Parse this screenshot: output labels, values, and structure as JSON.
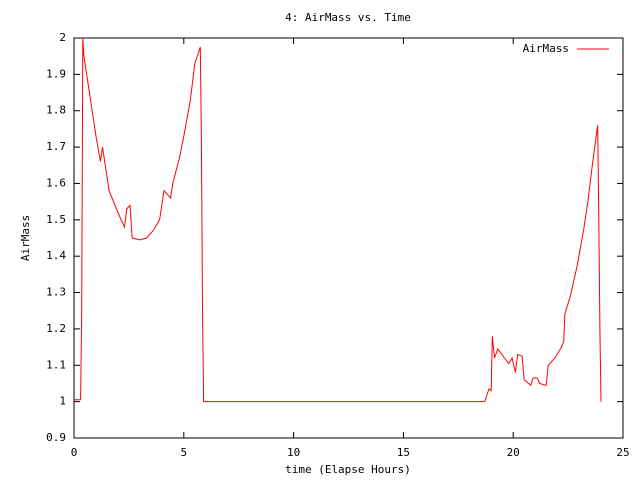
{
  "chart_data": {
    "type": "line",
    "title": "4: AirMass vs. Time",
    "x_label": "time (Elapse Hours)",
    "y_label": "AirMass",
    "xlim": [
      0,
      25
    ],
    "xticks": [
      0,
      5,
      10,
      15,
      20,
      25
    ],
    "ylim": [
      0.9,
      2
    ],
    "yticks": [
      0.9,
      1,
      1.1,
      1.2,
      1.3,
      1.4,
      1.5,
      1.6,
      1.7,
      1.8,
      1.9,
      2
    ],
    "legend": "top-right",
    "grid": false,
    "series": [
      {
        "name": "AirMass",
        "color": "#ff0000",
        "x": [
          0,
          0.3,
          0.35,
          0.4,
          0.45,
          0.7,
          1.0,
          1.2,
          1.3,
          1.4,
          1.6,
          2.0,
          2.3,
          2.4,
          2.55,
          2.65,
          3.0,
          3.3,
          3.6,
          3.9,
          4.1,
          4.4,
          4.5,
          4.8,
          5.0,
          5.3,
          5.5,
          5.75,
          5.8,
          5.85,
          5.9,
          18.7,
          18.9,
          19.0,
          19.05,
          19.15,
          19.3,
          19.6,
          19.8,
          19.95,
          20.1,
          20.2,
          20.4,
          20.5,
          20.8,
          20.9,
          21.1,
          21.2,
          21.5,
          21.6,
          21.9,
          22.2,
          22.3,
          22.35,
          22.6,
          22.9,
          23.2,
          23.4,
          23.6,
          23.85,
          23.9,
          23.95,
          24.0
        ],
        "values": [
          1.005,
          1.005,
          1.25,
          2.0,
          1.95,
          1.85,
          1.73,
          1.66,
          1.7,
          1.66,
          1.58,
          1.52,
          1.48,
          1.53,
          1.54,
          1.45,
          1.445,
          1.45,
          1.47,
          1.5,
          1.58,
          1.56,
          1.6,
          1.67,
          1.73,
          1.83,
          1.93,
          1.975,
          1.72,
          1.25,
          1.0,
          1.0,
          1.035,
          1.03,
          1.18,
          1.12,
          1.145,
          1.12,
          1.105,
          1.12,
          1.08,
          1.13,
          1.125,
          1.06,
          1.045,
          1.065,
          1.065,
          1.05,
          1.045,
          1.1,
          1.12,
          1.15,
          1.165,
          1.24,
          1.29,
          1.37,
          1.47,
          1.55,
          1.65,
          1.76,
          1.5,
          1.2,
          1.0
        ]
      }
    ]
  }
}
